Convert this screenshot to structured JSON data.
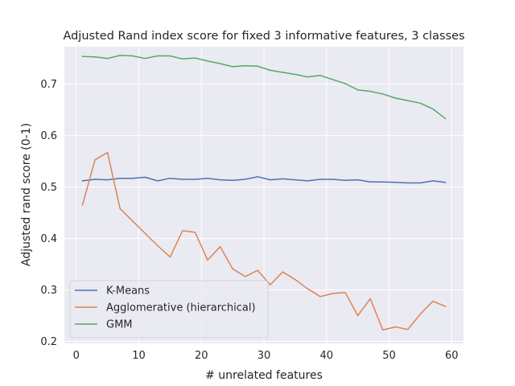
{
  "chart_data": {
    "type": "line",
    "title": "Adjusted Rand index score for fixed 3 informative features, 3 classes",
    "xlabel": "# unrelated features",
    "ylabel": "Adjusted rand score (0-1)",
    "xlim": [
      -1.9,
      61.9
    ],
    "ylim": [
      0.196,
      0.773
    ],
    "xticks": [
      0,
      10,
      20,
      30,
      40,
      50,
      60
    ],
    "yticks": [
      0.2,
      0.3,
      0.4,
      0.5,
      0.6,
      0.7
    ],
    "yticklabels": [
      "0.2",
      "0.3",
      "0.4",
      "0.5",
      "0.6",
      "0.7"
    ],
    "grid": true,
    "legend_position": "lower-left",
    "x": [
      1,
      3,
      5,
      7,
      9,
      11,
      13,
      15,
      17,
      19,
      21,
      23,
      25,
      27,
      29,
      31,
      33,
      35,
      37,
      39,
      41,
      43,
      45,
      47,
      49,
      51,
      53,
      55,
      57,
      59
    ],
    "series": [
      {
        "name": "K-Means",
        "color": "#4c72b0",
        "values": [
          0.512,
          0.515,
          0.514,
          0.517,
          0.517,
          0.519,
          0.512,
          0.517,
          0.515,
          0.515,
          0.517,
          0.514,
          0.513,
          0.515,
          0.52,
          0.514,
          0.516,
          0.514,
          0.512,
          0.515,
          0.515,
          0.513,
          0.514,
          0.51,
          0.51,
          0.509,
          0.508,
          0.508,
          0.512,
          0.509
        ]
      },
      {
        "name": "Agglomerative (hierarchical)",
        "color": "#dd8452",
        "values": [
          0.465,
          0.553,
          0.567,
          0.458,
          0.434,
          0.41,
          0.386,
          0.364,
          0.415,
          0.412,
          0.358,
          0.384,
          0.341,
          0.326,
          0.338,
          0.31,
          0.335,
          0.32,
          0.302,
          0.287,
          0.293,
          0.295,
          0.25,
          0.283,
          0.222,
          0.228,
          0.223,
          0.253,
          0.278,
          0.268
        ]
      },
      {
        "name": "GMM",
        "color": "#55a868",
        "values": [
          0.754,
          0.753,
          0.75,
          0.756,
          0.755,
          0.75,
          0.755,
          0.755,
          0.749,
          0.751,
          0.745,
          0.74,
          0.734,
          0.736,
          0.735,
          0.727,
          0.723,
          0.719,
          0.714,
          0.717,
          0.709,
          0.701,
          0.689,
          0.686,
          0.681,
          0.673,
          0.668,
          0.663,
          0.652,
          0.633
        ]
      }
    ]
  }
}
